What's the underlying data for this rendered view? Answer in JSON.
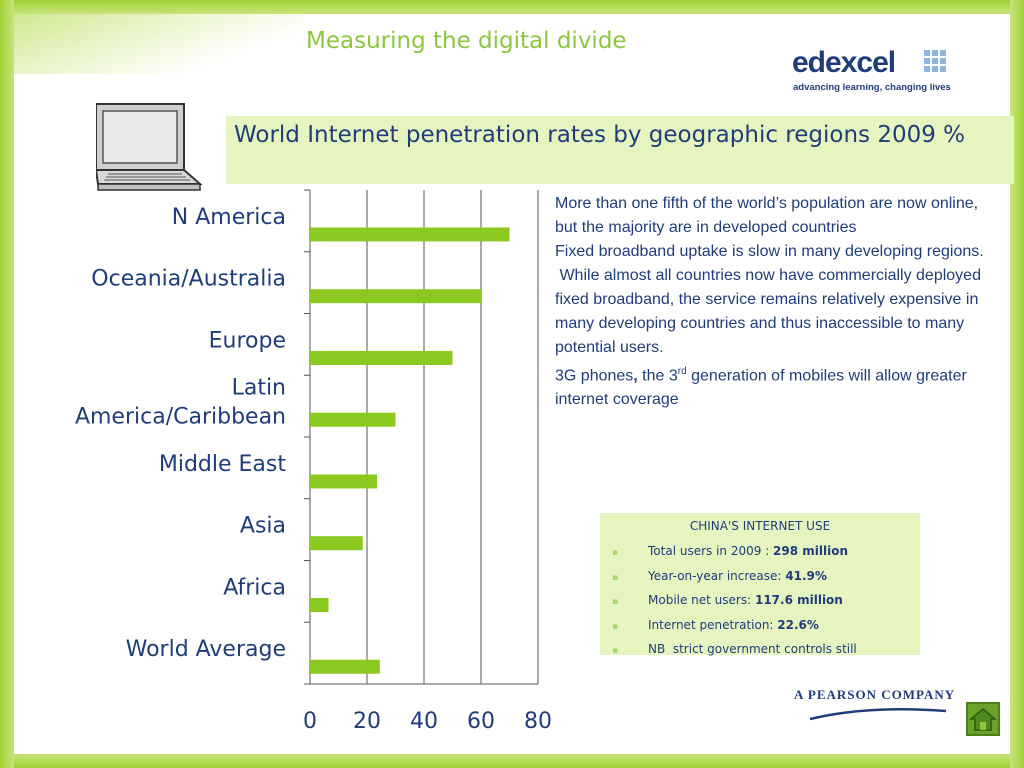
{
  "slide": {
    "title": "Measuring the digital divide",
    "headline": "World Internet penetration rates by geographic regions 2009 %"
  },
  "logo": {
    "word": "edexcel",
    "tagline": "advancing learning, changing lives"
  },
  "paragraphs": [
    "More than one fifth of the world’s population are now online, but the majority are in developed countries",
    "Fixed broadband uptake is slow in many developing regions.",
    " While almost all countries now have commercially deployed fixed broadband, the service remains relatively expensive in many developing countries and thus inaccessible to many potential users."
  ],
  "mobile_note": {
    "prefix": "3G phones",
    "comma": ",",
    "middle": " the 3",
    "superscript": "rd",
    "suffix": " generation of mobiles will allow greater internet coverage"
  },
  "china_box": {
    "title": "CHINA'S INTERNET USE",
    "items": [
      {
        "label": "Total users in 2009 : ",
        "value": "298 million"
      },
      {
        "label": "Year-on-year increase: ",
        "value": "41.9%"
      },
      {
        "label": "Mobile net users: ",
        "value": "117.6 million"
      },
      {
        "label": "Internet penetration: ",
        "value": "22.6%"
      },
      {
        "label": "NB  strict government controls still",
        "value": ""
      }
    ]
  },
  "footer": {
    "pearson": "A PEARSON COMPANY"
  },
  "colors": {
    "bar": "#8cc920",
    "text": "#1f3d7a",
    "accent": "#8cc63f",
    "box": "#e6f5bf"
  },
  "icons": {
    "laptop": "laptop-icon",
    "home": "home-icon"
  },
  "chart_data": {
    "type": "bar",
    "orientation": "horizontal",
    "categories": [
      "N America",
      "Oceania/Australia",
      "Europe",
      "Latin America/Caribbean",
      "Middle East",
      "Asia",
      "Africa",
      "World Average"
    ],
    "category_lines": [
      [
        "N America"
      ],
      [
        "Oceania/Australia"
      ],
      [
        "Europe"
      ],
      [
        "Latin",
        "America/Caribbean"
      ],
      [
        "Middle East"
      ],
      [
        "Asia"
      ],
      [
        "Africa"
      ],
      [
        "World Average"
      ]
    ],
    "values": [
      70,
      60,
      50,
      30,
      23.5,
      18.5,
      6.5,
      24.5
    ],
    "xlim": [
      0,
      80
    ],
    "x_ticks": [
      0,
      20,
      40,
      60,
      80
    ],
    "grid": true,
    "legend": "none"
  }
}
